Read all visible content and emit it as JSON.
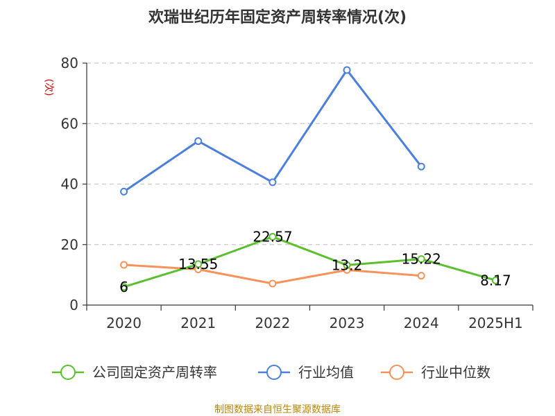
{
  "chart_data": {
    "type": "line",
    "title": "欢瑞世纪历年固定资产周转率情况(次)",
    "unit_label": "(次)",
    "categories": [
      "2020",
      "2021",
      "2022",
      "2023",
      "2024",
      "2025H1"
    ],
    "y_ticks": [
      "0",
      "20",
      "40",
      "60",
      "80"
    ],
    "ylim": [
      0,
      80
    ],
    "grid": true,
    "legend_position": "bottom",
    "series": [
      {
        "name": "公司固定资产周转率",
        "color": "#5cc02e",
        "values": [
          6,
          13.55,
          22.57,
          13.2,
          15.22,
          8.17
        ],
        "labels": [
          "6",
          "13.55",
          "22.57",
          "13.2",
          "15.22",
          "8.17"
        ]
      },
      {
        "name": "行业均值",
        "color": "#4a7fdb",
        "values": [
          37.5,
          54.2,
          40.6,
          77.7,
          45.8,
          null
        ]
      },
      {
        "name": "行业中位数",
        "color": "#f7925a",
        "values": [
          13.3,
          11.8,
          7.1,
          11.6,
          9.7,
          null
        ]
      }
    ]
  },
  "source": "制图数据来自恒生聚源数据库"
}
